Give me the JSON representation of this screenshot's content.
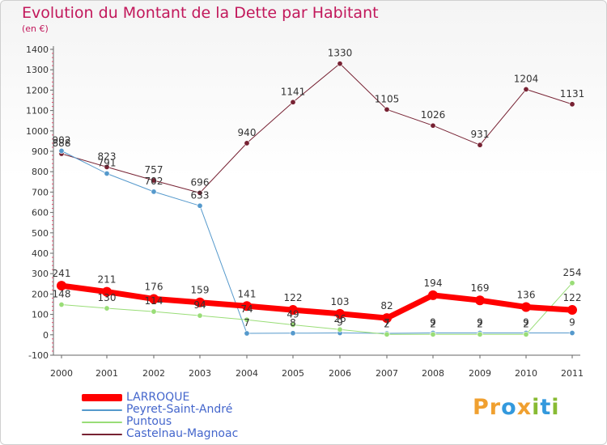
{
  "header": {
    "title": "Evolution du Montant de la Dette par Habitant",
    "subtitle": "(en €)"
  },
  "brand": {
    "name": "Proxiti",
    "letters": [
      {
        "ch": "P",
        "color": "#f0a030"
      },
      {
        "ch": "r",
        "color": "#f0a030"
      },
      {
        "ch": "o",
        "color": "#3399dd"
      },
      {
        "ch": "x",
        "color": "#f0a030"
      },
      {
        "ch": "i",
        "color": "#88bb33"
      },
      {
        "ch": "t",
        "color": "#3399dd"
      },
      {
        "ch": "i",
        "color": "#88bb33"
      }
    ]
  },
  "chart_data": {
    "type": "line",
    "title": "Evolution du Montant de la Dette par Habitant",
    "ylabel": "(en €)",
    "xlabel": "",
    "ylim": [
      -100,
      1400
    ],
    "yticks": [
      -100,
      0,
      100,
      200,
      300,
      400,
      500,
      600,
      700,
      800,
      900,
      1000,
      1100,
      1200,
      1300,
      1400
    ],
    "categories": [
      "2000",
      "2001",
      "2002",
      "2003",
      "2004",
      "2005",
      "2006",
      "2007",
      "2008",
      "2009",
      "2010",
      "2011"
    ],
    "grid": false,
    "legend_position": "bottom-left",
    "series": [
      {
        "name": "Castelnau-Magnoac",
        "color": "#772233",
        "width": 1,
        "values": [
          888,
          823,
          757,
          696,
          940,
          1141,
          1330,
          1105,
          1026,
          931,
          1204,
          1131
        ]
      },
      {
        "name": "Peyret-Saint-André",
        "color": "#5599cc",
        "width": 1,
        "values": [
          902,
          791,
          702,
          633,
          7,
          8,
          9,
          7,
          9,
          9,
          9,
          9
        ]
      },
      {
        "name": "Puntous",
        "color": "#99dd77",
        "width": 1,
        "values": [
          148,
          130,
          114,
          94,
          74,
          49,
          26,
          2,
          2,
          2,
          2,
          254
        ]
      },
      {
        "name": "LARROQUE",
        "color": "#ff0000",
        "width": 7,
        "values": [
          241,
          211,
          176,
          159,
          141,
          122,
          103,
          82,
          194,
          169,
          136,
          122
        ]
      }
    ],
    "data_labels": [
      {
        "series": "Castelnau-Magnoac",
        "texts": [
          "888",
          "823",
          "757",
          "696",
          "940",
          "1141",
          "1330",
          "1105",
          "1026",
          "931",
          "1204",
          "1131"
        ]
      },
      {
        "series": "Peyret-Saint-André",
        "texts": [
          "902",
          "791",
          "702",
          "633",
          "7",
          "8",
          "9",
          "7",
          "9",
          "9",
          "9",
          "9"
        ]
      },
      {
        "series": "Puntous",
        "texts": [
          "148",
          "130",
          "114",
          "94",
          "74",
          "49",
          "26",
          "2",
          "2",
          "2",
          "2",
          "254"
        ]
      },
      {
        "series": "LARROQUE",
        "texts": [
          "241",
          "211",
          "176",
          "159",
          "141",
          "122",
          "103",
          "82",
          "194",
          "169",
          "136",
          "122"
        ]
      }
    ]
  },
  "legend": {
    "items": [
      {
        "label": "LARROQUE",
        "color": "#ff0000"
      },
      {
        "label": "Peyret-Saint-André",
        "color": "#5599cc"
      },
      {
        "label": "Puntous",
        "color": "#99dd77"
      },
      {
        "label": "Castelnau-Magnoac",
        "color": "#772233"
      }
    ]
  }
}
